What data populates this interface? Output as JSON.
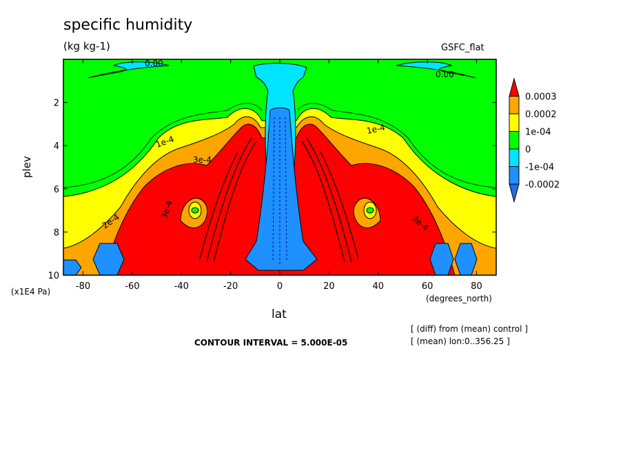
{
  "chart_data": {
    "type": "heatmap",
    "title": "specific humidity",
    "units": "(kg kg-1)",
    "dataset_label": "GSFC_flat",
    "xlabel": "lat",
    "x_units": "(degrees_north)",
    "ylabel": "plev",
    "y_units": "(x1E4 Pa)",
    "xlim": [
      -88,
      88
    ],
    "ylim": [
      10,
      0
    ],
    "x_ticks": [
      "-80",
      "-60",
      "-40",
      "-20",
      "0",
      "20",
      "40",
      "60",
      "80"
    ],
    "x_tick_values": [
      -80,
      -60,
      -40,
      -20,
      0,
      20,
      40,
      60,
      80
    ],
    "y_ticks": [
      "2",
      "4",
      "6",
      "8",
      "10"
    ],
    "y_tick_values": [
      2,
      4,
      6,
      8,
      10
    ],
    "contour_interval_text": "CONTOUR INTERVAL = 5.000E-05",
    "notes": [
      "[ (diff) from (mean) control ]",
      "[ (mean) lon:0..356.25 ]"
    ],
    "colorbar": {
      "labels": [
        "0.0003",
        "0.0002",
        "1e-04",
        "0",
        "-1e-04",
        "-0.0002"
      ],
      "levels": [
        0.0003,
        0.0002,
        0.0001,
        0,
        -0.0001,
        -0.0002
      ],
      "colors": [
        "#ff0000",
        "#ffa500",
        "#ffff00",
        "#00ff00",
        "#00e5ff",
        "#1e90ff",
        "#1c6fe8"
      ]
    },
    "contour_labels": [
      "0.00",
      "0.00",
      "1e-4",
      "1e-4",
      "3e-4",
      "2e-4",
      "3e-4",
      "3e-4"
    ],
    "grid": false,
    "legend_placement": "right"
  }
}
